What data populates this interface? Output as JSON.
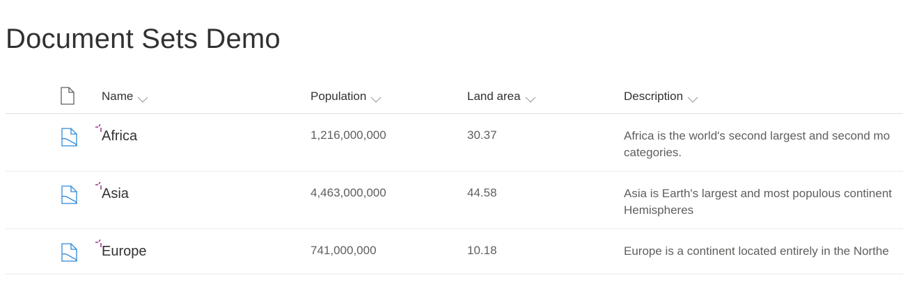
{
  "page": {
    "title": "Document Sets Demo"
  },
  "columns": {
    "name": "Name",
    "population": "Population",
    "land_area": "Land area",
    "description": "Description"
  },
  "icons": {
    "file_type_header": "file-icon",
    "row_type": "document-set-icon",
    "new_indicator": "new-item-sparkle-icon",
    "sort": "chevron-down-icon"
  },
  "colors": {
    "docset_icon": "#2b88d8",
    "new_indicator": "#8e2682",
    "text_primary": "#323130",
    "text_secondary": "#605e5c"
  },
  "rows": [
    {
      "name": "Africa",
      "population": "1,216,000,000",
      "land_area": "30.37",
      "description_line1": "Africa is the world's second largest and second mo",
      "description_line2": "categories."
    },
    {
      "name": "Asia",
      "population": "4,463,000,000",
      "land_area": "44.58",
      "description_line1": "Asia is Earth's largest and most populous continent",
      "description_line2": "Hemispheres"
    },
    {
      "name": "Europe",
      "population": "741,000,000",
      "land_area": "10.18",
      "description_line1": "Europe is a continent located entirely in the Northe",
      "description_line2": ""
    }
  ]
}
